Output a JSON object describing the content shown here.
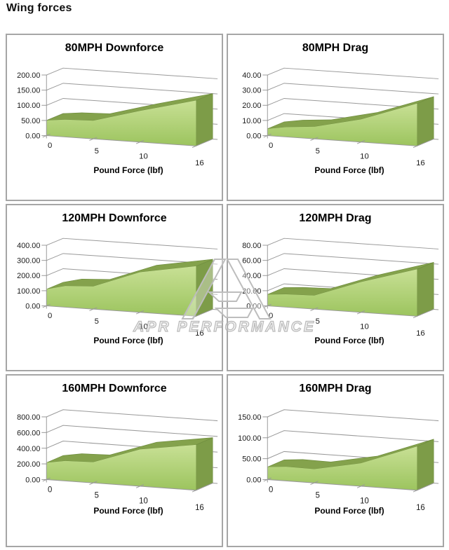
{
  "page": {
    "title": "Wing forces"
  },
  "watermark": {
    "text": "APR PERFORMANCE",
    "logo_icon": "apr-logo"
  },
  "colors": {
    "area_gradient_top": "#c8e095",
    "area_gradient_bottom": "#9cc45e",
    "area_top_band": "#84a24c",
    "area_right_side": "#7d9c48",
    "area_outline": "#6f8d3f",
    "grid_line": "#999999",
    "panel_border": "#a6a6a6",
    "label_text": "#1a1a1a",
    "watermark_gray": "#bcbcbc"
  },
  "chart_data": [
    {
      "type": "area",
      "title": "80MPH Downforce",
      "xlabel": "Pound Force (lbf)",
      "x": [
        0,
        2,
        5,
        10,
        16
      ],
      "values": [
        50,
        57,
        60,
        103,
        150
      ],
      "ylim": [
        0,
        200
      ],
      "ystep": 50,
      "xticks": [
        0,
        5,
        10,
        16
      ],
      "grid": true,
      "legend": "none"
    },
    {
      "type": "area",
      "title": "80MPH Drag",
      "xlabel": "Pound Force (lbf)",
      "x": [
        0,
        2,
        5,
        10,
        16
      ],
      "values": [
        4.5,
        6.5,
        8,
        15,
        28
      ],
      "ylim": [
        0,
        40
      ],
      "ystep": 10,
      "xticks": [
        0,
        5,
        10,
        16
      ],
      "grid": true,
      "legend": "none"
    },
    {
      "type": "area",
      "title": "120MPH Downforce",
      "xlabel": "Pound Force (lbf)",
      "x": [
        0,
        2,
        5,
        10,
        16
      ],
      "values": [
        110,
        140,
        150,
        265,
        330
      ],
      "ylim": [
        0,
        400
      ],
      "ystep": 100,
      "xticks": [
        0,
        5,
        10,
        16
      ],
      "grid": true,
      "legend": "none"
    },
    {
      "type": "area",
      "title": "120MPH Drag",
      "xlabel": "Pound Force (lbf)",
      "x": [
        0,
        2,
        5,
        10,
        16
      ],
      "values": [
        15,
        17,
        18,
        40,
        62
      ],
      "ylim": [
        0,
        80
      ],
      "ystep": 20,
      "xticks": [
        0,
        5,
        10,
        16
      ],
      "grid": true,
      "legend": "none"
    },
    {
      "type": "area",
      "title": "160MPH Downforce",
      "xlabel": "Pound Force (lbf)",
      "x": [
        0,
        2,
        5,
        10,
        16
      ],
      "values": [
        215,
        255,
        265,
        470,
        580
      ],
      "ylim": [
        0,
        800
      ],
      "ystep": 200,
      "xticks": [
        0,
        5,
        10,
        16
      ],
      "grid": true,
      "legend": "none"
    },
    {
      "type": "area",
      "title": "160MPH Drag",
      "xlabel": "Pound Force (lbf)",
      "x": [
        0,
        2,
        5,
        10,
        16
      ],
      "values": [
        30,
        34,
        33,
        55,
        105
      ],
      "ylim": [
        0,
        150
      ],
      "ystep": 50,
      "xticks": [
        0,
        5,
        10,
        16
      ],
      "grid": true,
      "legend": "none"
    }
  ]
}
